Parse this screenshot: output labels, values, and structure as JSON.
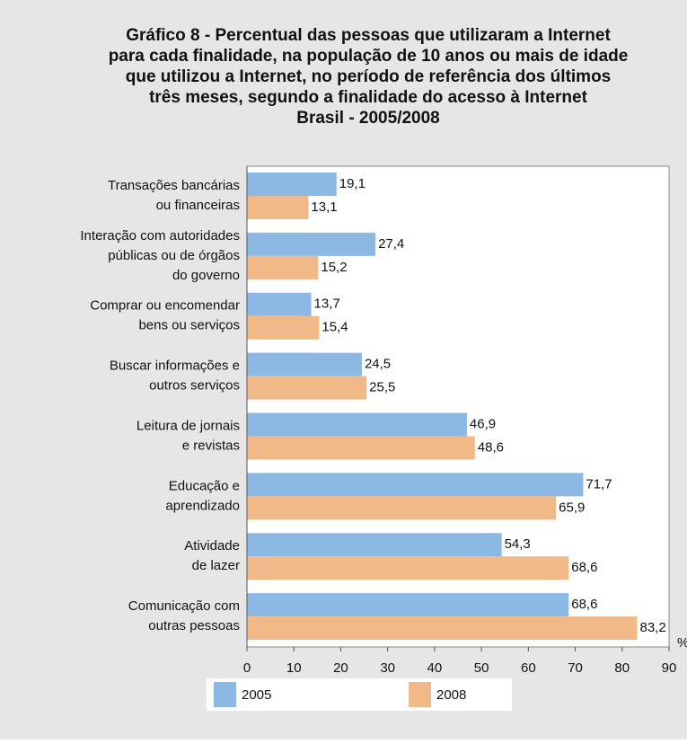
{
  "chart_data": {
    "type": "bar",
    "orientation": "horizontal",
    "title": [
      "Gráfico 8 - Percentual das pessoas que utilizaram a Internet",
      "para cada finalidade, na população de 10 anos ou mais de idade",
      "que utilizou a Internet, no período de referência dos últimos",
      "três meses, segundo a finalidade do acesso à Internet",
      "Brasil - 2005/2008"
    ],
    "categories": [
      [
        "Transações bancárias",
        "ou financeiras"
      ],
      [
        "Interação com autoridades",
        "públicas ou de órgãos",
        "do governo"
      ],
      [
        "Comprar ou encomendar",
        "bens ou serviços"
      ],
      [
        "Buscar informações e",
        "outros serviços"
      ],
      [
        "Leitura de jornais",
        "e revistas"
      ],
      [
        "Educação e",
        "aprendizado"
      ],
      [
        "Atividade",
        "de lazer"
      ],
      [
        "Comunicação com",
        "outras pessoas"
      ]
    ],
    "series": [
      {
        "name": "2005",
        "color": "#8cb8e4",
        "values": [
          19.1,
          27.4,
          13.7,
          24.5,
          46.9,
          71.7,
          54.3,
          68.6
        ],
        "value_labels": [
          "19,1",
          "27,4",
          "13,7",
          "24,5",
          "46,9",
          "71,7",
          "54,3",
          "68,6"
        ]
      },
      {
        "name": "2008",
        "color": "#f0b987",
        "values": [
          13.1,
          15.2,
          15.4,
          25.5,
          48.6,
          65.9,
          68.6,
          83.2
        ],
        "value_labels": [
          "13,1",
          "15,2",
          "15,4",
          "25,5",
          "48,6",
          "65,9",
          "68,6",
          "83,2"
        ]
      }
    ],
    "xlabel": "%",
    "xlim": [
      0,
      90
    ],
    "xticks": [
      0,
      10,
      20,
      30,
      40,
      50,
      60,
      70,
      80,
      90
    ]
  }
}
